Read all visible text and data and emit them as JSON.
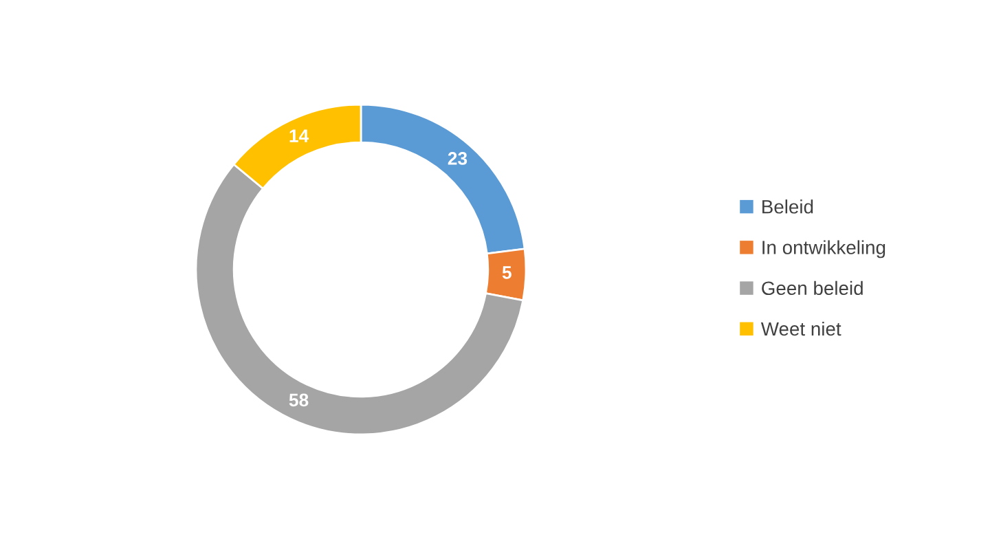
{
  "chart_data": {
    "type": "donut",
    "categories": [
      "Beleid",
      "In ontwikkeling",
      "Geen beleid",
      "Weet niet"
    ],
    "values": [
      23,
      5,
      58,
      14
    ],
    "colors": [
      "#5b9bd5",
      "#ed7d31",
      "#a5a5a5",
      "#ffc000"
    ],
    "data_labels": true,
    "legend": "right"
  }
}
